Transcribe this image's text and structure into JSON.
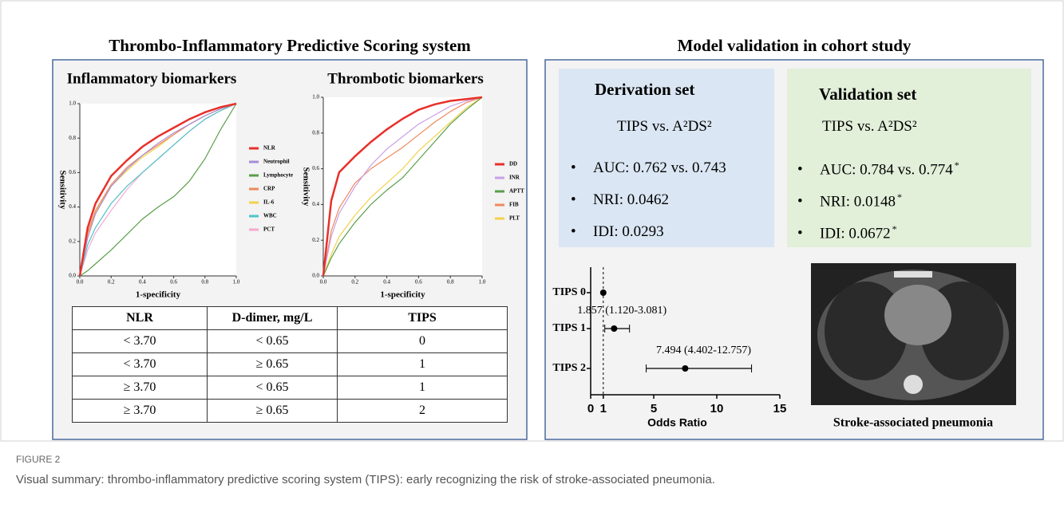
{
  "left_panel": {
    "title": "Thrombo-Inflammatory Predictive Scoring system"
  },
  "right_panel": {
    "title": "Model validation in cohort study"
  },
  "chart_data": [
    {
      "type": "line",
      "title": "Inflammatory biomarkers",
      "x_label": "1-specificity",
      "y_label": "Sensitivity",
      "x": [
        0,
        0.05,
        0.1,
        0.2,
        0.3,
        0.4,
        0.5,
        0.6,
        0.7,
        0.8,
        0.9,
        1
      ],
      "xlim": [
        0,
        1
      ],
      "ylim": [
        0,
        1
      ],
      "xticks": [
        {
          "value": 0,
          "label": "0.0"
        },
        0.2,
        0.4,
        0.6,
        0.8,
        {
          "value": 1,
          "label": "1.0"
        }
      ],
      "yticks": [
        {
          "value": 0,
          "label": "0.0"
        },
        0.2,
        0.4,
        0.6,
        0.8,
        {
          "value": 1,
          "label": "1.0"
        }
      ],
      "series": [
        {
          "name": "NLR",
          "color": "#e8302a",
          "values": [
            0,
            0.28,
            0.42,
            0.58,
            0.67,
            0.75,
            0.81,
            0.86,
            0.91,
            0.95,
            0.98,
            1
          ]
        },
        {
          "name": "Neutrophil",
          "color": "#a78bd9",
          "values": [
            0,
            0.22,
            0.36,
            0.52,
            0.62,
            0.7,
            0.77,
            0.83,
            0.88,
            0.93,
            0.97,
            1
          ]
        },
        {
          "name": "Lymphocyte",
          "color": "#5a9e4a",
          "values": [
            0,
            0.03,
            0.07,
            0.15,
            0.24,
            0.33,
            0.4,
            0.46,
            0.55,
            0.68,
            0.85,
            1
          ]
        },
        {
          "name": "CRP",
          "color": "#f08a5d",
          "values": [
            0,
            0.25,
            0.38,
            0.53,
            0.63,
            0.7,
            0.76,
            0.82,
            0.88,
            0.93,
            0.97,
            1
          ]
        },
        {
          "name": "IL-6",
          "color": "#f2d24b",
          "values": [
            0,
            0.24,
            0.37,
            0.52,
            0.61,
            0.69,
            0.75,
            0.82,
            0.88,
            0.93,
            0.97,
            1
          ]
        },
        {
          "name": "WBC",
          "color": "#4fc3c8",
          "values": [
            0,
            0.18,
            0.28,
            0.42,
            0.52,
            0.6,
            0.68,
            0.76,
            0.84,
            0.91,
            0.96,
            1
          ]
        },
        {
          "name": "PCT",
          "color": "#f5a9d0",
          "values": [
            0,
            0.15,
            0.25,
            0.38,
            0.5,
            0.6,
            0.68,
            0.76,
            0.84,
            0.91,
            0.96,
            1
          ]
        }
      ]
    },
    {
      "type": "line",
      "title": "Thrombotic biomarkers",
      "x_label": "1-specificity",
      "y_label": "Sensitivity",
      "x": [
        0,
        0.05,
        0.1,
        0.2,
        0.3,
        0.4,
        0.5,
        0.6,
        0.7,
        0.8,
        0.9,
        1
      ],
      "xlim": [
        0,
        1
      ],
      "ylim": [
        0,
        1
      ],
      "xticks": [
        {
          "value": 0,
          "label": "0.0"
        },
        0.2,
        0.4,
        0.6,
        0.8,
        {
          "value": 1,
          "label": "1.0"
        }
      ],
      "yticks": [
        {
          "value": 0,
          "label": "0.0"
        },
        0.2,
        0.4,
        0.6,
        0.8,
        {
          "value": 1,
          "label": "1.0"
        }
      ],
      "series": [
        {
          "name": "DD",
          "color": "#e8302a",
          "values": [
            0,
            0.42,
            0.58,
            0.67,
            0.75,
            0.82,
            0.88,
            0.93,
            0.96,
            0.98,
            0.99,
            1
          ]
        },
        {
          "name": "INR",
          "color": "#c9a0e6",
          "values": [
            0,
            0.22,
            0.35,
            0.5,
            0.62,
            0.71,
            0.78,
            0.85,
            0.9,
            0.95,
            0.98,
            1
          ]
        },
        {
          "name": "APTT",
          "color": "#5a9e4a",
          "values": [
            0,
            0.1,
            0.18,
            0.3,
            0.4,
            0.48,
            0.55,
            0.65,
            0.75,
            0.85,
            0.93,
            1
          ]
        },
        {
          "name": "FIB",
          "color": "#f08a5d",
          "values": [
            0,
            0.25,
            0.38,
            0.52,
            0.6,
            0.66,
            0.72,
            0.79,
            0.86,
            0.92,
            0.97,
            1
          ]
        },
        {
          "name": "PLT",
          "color": "#f2d24b",
          "values": [
            0,
            0.12,
            0.22,
            0.34,
            0.44,
            0.52,
            0.6,
            0.7,
            0.78,
            0.86,
            0.94,
            1
          ]
        }
      ]
    },
    {
      "type": "forest",
      "x_label": "Odds Ratio",
      "categories": [
        "TIPS 0",
        "TIPS 1",
        "TIPS 2"
      ],
      "values": [
        1,
        1.857,
        7.494
      ],
      "lower": [
        null,
        1.12,
        4.402
      ],
      "upper": [
        null,
        3.081,
        12.757
      ],
      "value_labels": [
        null,
        "1.857 (1.120-3.081)",
        "7.494 (4.402-12.757)"
      ],
      "reference_line": 1,
      "xlim": [
        0,
        15
      ],
      "xticks": [
        0,
        1,
        5,
        10,
        15
      ]
    }
  ],
  "table": {
    "header": [
      "NLR",
      "D-dimer, mg/L",
      "TIPS"
    ],
    "rows": [
      [
        "< 3.70",
        "< 0.65",
        "0"
      ],
      [
        "< 3.70",
        "≥ 0.65",
        "1"
      ],
      [
        "≥ 3.70",
        "< 0.65",
        "1"
      ],
      [
        "≥ 3.70",
        "≥ 0.65",
        "2"
      ]
    ]
  },
  "derivation": {
    "title": "Derivation set",
    "comparison": "TIPS vs. A²DS²",
    "items": [
      "AUC: 0.762 vs. 0.743",
      "NRI: 0.0462",
      "IDI: 0.0293"
    ]
  },
  "validation": {
    "title": "Validation set",
    "comparison": "TIPS vs. A²DS²",
    "items": [
      "AUC: 0.784 vs. 0.774",
      "NRI:  0.0148",
      "IDI:  0.0672"
    ],
    "marker": "*"
  },
  "image": {
    "caption": "Stroke-associated pneumonia"
  },
  "figure": {
    "label": "FIGURE 2",
    "caption": "Visual summary: thrombo-inflammatory predictive scoring system (TIPS): early recognizing the risk of stroke-associated pneumonia."
  }
}
